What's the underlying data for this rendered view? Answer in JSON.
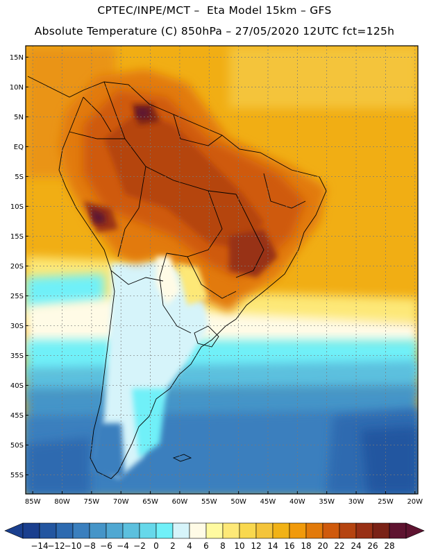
{
  "header": {
    "line1": "CPTEC/INPE/MCT –  Eta Model 15km – GFS",
    "line2": "Absolute Temperature (C) 850hPa – 27/05/2020 12UTC fct=125h"
  },
  "map": {
    "lat_labels": [
      "15N",
      "10N",
      "5N",
      "EQ",
      "5S",
      "10S",
      "15S",
      "20S",
      "25S",
      "30S",
      "35S",
      "40S",
      "45S",
      "50S",
      "55S"
    ],
    "lon_labels": [
      "85W",
      "80W",
      "75W",
      "70W",
      "65W",
      "60W",
      "55W",
      "50W",
      "45W",
      "40W",
      "35W",
      "30W",
      "25W",
      "20W"
    ],
    "lat_values": [
      15,
      10,
      5,
      0,
      -5,
      -10,
      -15,
      -20,
      -25,
      -30,
      -35,
      -40,
      -45,
      -50,
      -55
    ],
    "lon_values": [
      -85,
      -80,
      -75,
      -70,
      -65,
      -60,
      -55,
      -50,
      -45,
      -40,
      -35,
      -30,
      -25,
      -20
    ]
  },
  "colorbar": {
    "labels": [
      "-14",
      "-12",
      "-10",
      "-8",
      "-6",
      "-4",
      "-2",
      "0",
      "2",
      "4",
      "6",
      "8",
      "10",
      "12",
      "14",
      "16",
      "18",
      "20",
      "22",
      "24",
      "26",
      "28"
    ],
    "colors": [
      "#1a3f8e",
      "#2356a0",
      "#2d6ab0",
      "#3a7fbe",
      "#4595c8",
      "#50a8d2",
      "#5cc0de",
      "#66d8ea",
      "#70f0f8",
      "#d6f4fa",
      "#fffbe6",
      "#fffaa0",
      "#fde877",
      "#f9d84e",
      "#f4c43a",
      "#f1b216",
      "#f19a0a",
      "#e27a0a",
      "#cf5a0c",
      "#b54410",
      "#983015",
      "#7a2216",
      "#5e1330"
    ]
  }
}
